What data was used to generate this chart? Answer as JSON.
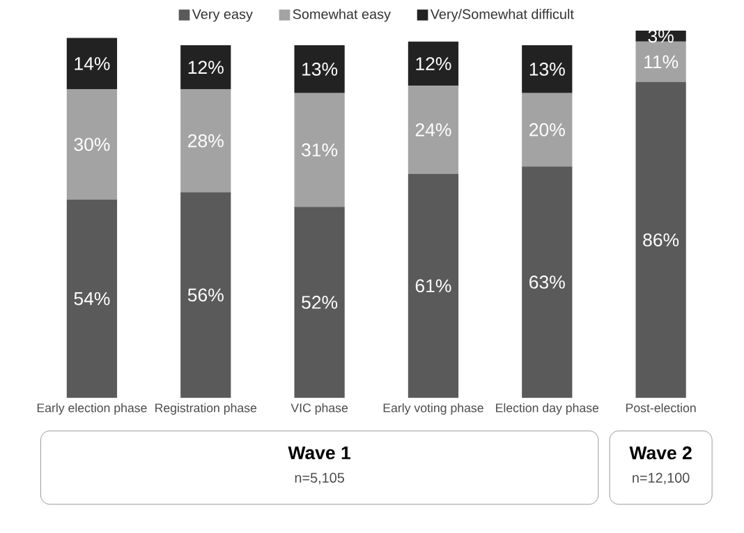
{
  "chart_data": {
    "type": "bar",
    "stacked": true,
    "categories": [
      "Early election phase",
      "Registration phase",
      "VIC phase",
      "Early voting phase",
      "Election day phase",
      "Post-election"
    ],
    "series": [
      {
        "name": "Very easy",
        "color": "#5a5a5a",
        "values": [
          54,
          56,
          52,
          61,
          63,
          86
        ],
        "value_labels": [
          "54%",
          "56%",
          "52%",
          "61%",
          "63%",
          "86%"
        ]
      },
      {
        "name": "Somewhat easy",
        "color": "#a3a3a3",
        "values": [
          30,
          28,
          31,
          24,
          20,
          11
        ],
        "value_labels": [
          "30%",
          "28%",
          "31%",
          "24%",
          "20%",
          "11%"
        ]
      },
      {
        "name": "Very/Somewhat difficult",
        "color": "#222222",
        "values": [
          14,
          12,
          13,
          12,
          13,
          3
        ],
        "value_labels": [
          "14%",
          "12%",
          "13%",
          "12%",
          "13%",
          "3%"
        ]
      }
    ],
    "ylim": [
      0,
      100
    ],
    "legend": "top",
    "annotations": [
      "Wave 1",
      "n=5,105",
      "Wave 2",
      "n=12,100"
    ]
  }
}
